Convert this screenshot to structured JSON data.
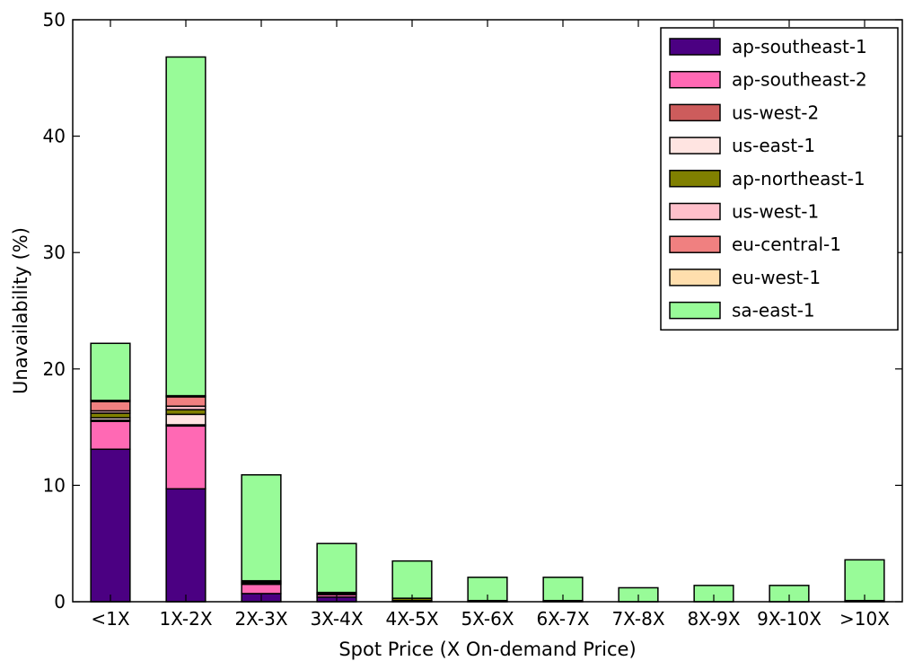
{
  "chart_data": {
    "type": "bar",
    "stacked": true,
    "title": "",
    "xlabel": "Spot Price (X On-demand Price)",
    "ylabel": "Unavailability (%)",
    "ylim": [
      0,
      50
    ],
    "yticks": [
      0,
      10,
      20,
      30,
      40,
      50
    ],
    "grid": false,
    "legend_position": "top-right",
    "categories": [
      "<1X",
      "1X-2X",
      "2X-3X",
      "3X-4X",
      "4X-5X",
      "5X-6X",
      "6X-7X",
      "7X-8X",
      "8X-9X",
      "9X-10X",
      ">10X"
    ],
    "series": [
      {
        "name": "ap-southeast-1",
        "color": "#4b0082",
        "values": [
          13.1,
          9.7,
          0.7,
          0.4,
          0.1,
          0.0,
          0.0,
          0.0,
          0.0,
          0.0,
          0.0
        ]
      },
      {
        "name": "ap-southeast-2",
        "color": "#ff69b4",
        "values": [
          2.4,
          5.4,
          0.8,
          0.2,
          0.0,
          0.0,
          0.0,
          0.0,
          0.0,
          0.0,
          0.0
        ]
      },
      {
        "name": "us-west-2",
        "color": "#cd5c5c",
        "values": [
          0.1,
          0.1,
          0.0,
          0.0,
          0.0,
          0.0,
          0.0,
          0.0,
          0.0,
          0.0,
          0.0
        ]
      },
      {
        "name": "us-east-1",
        "color": "#ffe4e1",
        "values": [
          0.2,
          0.9,
          0.1,
          0.0,
          0.0,
          0.0,
          0.0,
          0.0,
          0.0,
          0.0,
          0.0
        ]
      },
      {
        "name": "ap-northeast-1",
        "color": "#808000",
        "values": [
          0.4,
          0.4,
          0.1,
          0.1,
          0.2,
          0.1,
          0.1,
          0.0,
          0.0,
          0.0,
          0.1
        ]
      },
      {
        "name": "us-west-1",
        "color": "#ffc0cb",
        "values": [
          0.2,
          0.3,
          0.1,
          0.1,
          0.0,
          0.0,
          0.0,
          0.0,
          0.0,
          0.0,
          0.0
        ]
      },
      {
        "name": "eu-central-1",
        "color": "#f08080",
        "values": [
          0.8,
          0.8,
          0.0,
          0.0,
          0.0,
          0.0,
          0.0,
          0.0,
          0.0,
          0.0,
          0.0
        ]
      },
      {
        "name": "eu-west-1",
        "color": "#ffdead",
        "values": [
          0.1,
          0.1,
          0.0,
          0.0,
          0.0,
          0.0,
          0.0,
          0.0,
          0.0,
          0.0,
          0.0
        ]
      },
      {
        "name": "sa-east-1",
        "color": "#98fb98",
        "values": [
          4.9,
          29.1,
          9.1,
          4.2,
          3.2,
          2.0,
          2.0,
          1.2,
          1.4,
          1.4,
          3.5
        ]
      }
    ]
  }
}
